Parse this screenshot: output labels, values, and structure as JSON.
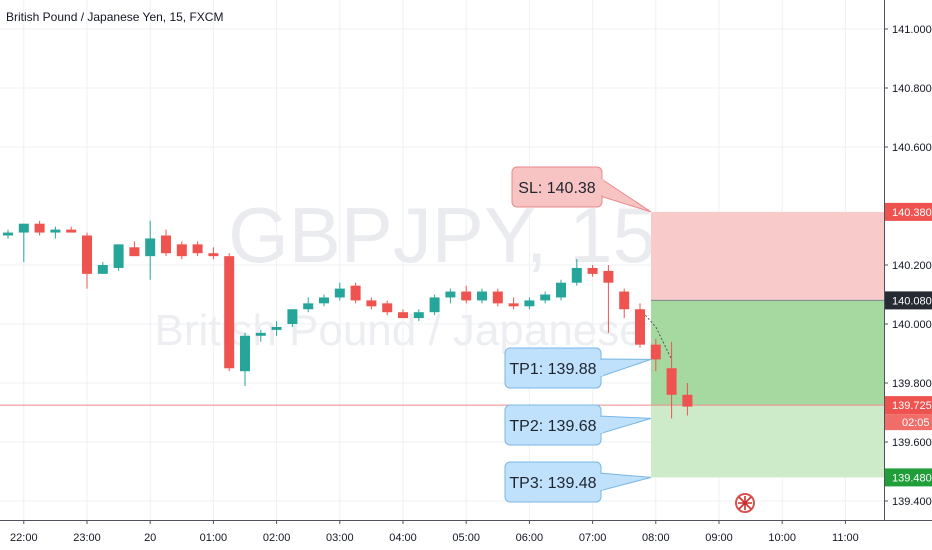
{
  "header": {
    "title": "British Pound / Japanese Yen, 15, FXCM"
  },
  "watermark": {
    "symbol": "GBPJPY, 15",
    "name": "British Pound / Japanese Yen"
  },
  "colors": {
    "up": "#26a69a",
    "down": "#ef5350",
    "sl_zone": "#f9caca",
    "tp_zone_dark": "#a5d9a0",
    "tp_zone_light": "#cdebc8",
    "sl_badge": "#ef5350",
    "entry_badge": "#262a33",
    "tp_badge": "#1f9e3a",
    "price_badge": "#ef5350",
    "callout_red_fill": "#f8c3c3",
    "callout_blue_fill": "#bfe1fb",
    "grid": "#eef0f3"
  },
  "chart_data": {
    "type": "candlestick",
    "symbol": "GBPJPY",
    "timeframe": "15",
    "source": "FXCM",
    "ylim": [
      139.32,
      141.06
    ],
    "y_ticks": [
      {
        "value": 141.0,
        "label": "141.000"
      },
      {
        "value": 140.8,
        "label": "140.800"
      },
      {
        "value": 140.6,
        "label": "140.600"
      },
      {
        "value": 140.2,
        "label": "140.200"
      },
      {
        "value": 140.0,
        "label": "140.000"
      },
      {
        "value": 139.8,
        "label": "139.800"
      },
      {
        "value": 139.6,
        "label": "139.600"
      },
      {
        "value": 139.4,
        "label": "139.400"
      }
    ],
    "x_ticks": [
      {
        "index": 1,
        "label": "22:00"
      },
      {
        "index": 5,
        "label": "23:00"
      },
      {
        "index": 9,
        "label": "20"
      },
      {
        "index": 13,
        "label": "01:00"
      },
      {
        "index": 17,
        "label": "02:00"
      },
      {
        "index": 21,
        "label": "03:00"
      },
      {
        "index": 25,
        "label": "04:00"
      },
      {
        "index": 29,
        "label": "05:00"
      },
      {
        "index": 33,
        "label": "06:00"
      },
      {
        "index": 37,
        "label": "07:00"
      },
      {
        "index": 41,
        "label": "08:00"
      },
      {
        "index": 45,
        "label": "09:00"
      },
      {
        "index": 49,
        "label": "10:00"
      },
      {
        "index": 53,
        "label": "11:00"
      }
    ],
    "candles": [
      {
        "o": 140.3,
        "h": 140.32,
        "l": 140.29,
        "c": 140.31
      },
      {
        "o": 140.31,
        "h": 140.34,
        "l": 140.21,
        "c": 140.34
      },
      {
        "o": 140.34,
        "h": 140.35,
        "l": 140.3,
        "c": 140.31
      },
      {
        "o": 140.31,
        "h": 140.33,
        "l": 140.29,
        "c": 140.32
      },
      {
        "o": 140.32,
        "h": 140.33,
        "l": 140.31,
        "c": 140.31
      },
      {
        "o": 140.3,
        "h": 140.31,
        "l": 140.12,
        "c": 140.17
      },
      {
        "o": 140.17,
        "h": 140.21,
        "l": 140.17,
        "c": 140.2
      },
      {
        "o": 140.19,
        "h": 140.27,
        "l": 140.18,
        "c": 140.27
      },
      {
        "o": 140.26,
        "h": 140.28,
        "l": 140.23,
        "c": 140.23
      },
      {
        "o": 140.23,
        "h": 140.35,
        "l": 140.15,
        "c": 140.29
      },
      {
        "o": 140.3,
        "h": 140.32,
        "l": 140.23,
        "c": 140.24
      },
      {
        "o": 140.27,
        "h": 140.28,
        "l": 140.22,
        "c": 140.23
      },
      {
        "o": 140.27,
        "h": 140.28,
        "l": 140.23,
        "c": 140.24
      },
      {
        "o": 140.24,
        "h": 140.26,
        "l": 140.22,
        "c": 140.23
      },
      {
        "o": 140.23,
        "h": 140.24,
        "l": 139.84,
        "c": 139.85
      },
      {
        "o": 139.84,
        "h": 139.97,
        "l": 139.79,
        "c": 139.96
      },
      {
        "o": 139.96,
        "h": 139.98,
        "l": 139.94,
        "c": 139.97
      },
      {
        "o": 139.98,
        "h": 140.01,
        "l": 139.96,
        "c": 139.99
      },
      {
        "o": 140.0,
        "h": 140.05,
        "l": 139.99,
        "c": 140.05
      },
      {
        "o": 140.05,
        "h": 140.09,
        "l": 140.04,
        "c": 140.07
      },
      {
        "o": 140.07,
        "h": 140.1,
        "l": 140.06,
        "c": 140.09
      },
      {
        "o": 140.09,
        "h": 140.14,
        "l": 140.08,
        "c": 140.12
      },
      {
        "o": 140.13,
        "h": 140.14,
        "l": 140.07,
        "c": 140.08
      },
      {
        "o": 140.08,
        "h": 140.09,
        "l": 140.05,
        "c": 140.06
      },
      {
        "o": 140.07,
        "h": 140.08,
        "l": 140.03,
        "c": 140.04
      },
      {
        "o": 140.04,
        "h": 140.05,
        "l": 140.02,
        "c": 140.02
      },
      {
        "o": 140.02,
        "h": 140.05,
        "l": 140.01,
        "c": 140.04
      },
      {
        "o": 140.04,
        "h": 140.1,
        "l": 140.03,
        "c": 140.09
      },
      {
        "o": 140.09,
        "h": 140.12,
        "l": 140.07,
        "c": 140.11
      },
      {
        "o": 140.11,
        "h": 140.13,
        "l": 140.07,
        "c": 140.08
      },
      {
        "o": 140.08,
        "h": 140.12,
        "l": 140.07,
        "c": 140.11
      },
      {
        "o": 140.11,
        "h": 140.12,
        "l": 140.06,
        "c": 140.07
      },
      {
        "o": 140.07,
        "h": 140.09,
        "l": 140.05,
        "c": 140.06
      },
      {
        "o": 140.06,
        "h": 140.09,
        "l": 140.05,
        "c": 140.08
      },
      {
        "o": 140.08,
        "h": 140.11,
        "l": 140.07,
        "c": 140.1
      },
      {
        "o": 140.09,
        "h": 140.15,
        "l": 140.08,
        "c": 140.14
      },
      {
        "o": 140.14,
        "h": 140.22,
        "l": 140.13,
        "c": 140.19
      },
      {
        "o": 140.19,
        "h": 140.2,
        "l": 140.16,
        "c": 140.17
      },
      {
        "o": 140.18,
        "h": 140.2,
        "l": 139.97,
        "c": 140.14
      },
      {
        "o": 140.11,
        "h": 140.12,
        "l": 140.02,
        "c": 140.05
      },
      {
        "o": 140.05,
        "h": 140.07,
        "l": 139.92,
        "c": 139.93
      },
      {
        "o": 139.93,
        "h": 139.95,
        "l": 139.84,
        "c": 139.88
      },
      {
        "o": 139.85,
        "h": 139.94,
        "l": 139.68,
        "c": 139.76
      },
      {
        "o": 139.76,
        "h": 139.8,
        "l": 139.69,
        "c": 139.72
      }
    ],
    "stop_loss": 140.38,
    "entry": 140.08,
    "take_profits": [
      139.88,
      139.68,
      139.48
    ],
    "current_price": 139.725,
    "countdown": "02:05",
    "price_badges": {
      "sl": "140.380",
      "entry": "140.080",
      "current": "139.725",
      "tp": "139.480"
    },
    "callouts": [
      {
        "kind": "sl",
        "text": "SL: 140.38",
        "value": 140.38
      },
      {
        "kind": "tp",
        "text": "TP1: 139.88",
        "value": 139.88
      },
      {
        "kind": "tp",
        "text": "TP2: 139.68",
        "value": 139.68
      },
      {
        "kind": "tp",
        "text": "TP3: 139.48",
        "value": 139.48
      }
    ]
  }
}
